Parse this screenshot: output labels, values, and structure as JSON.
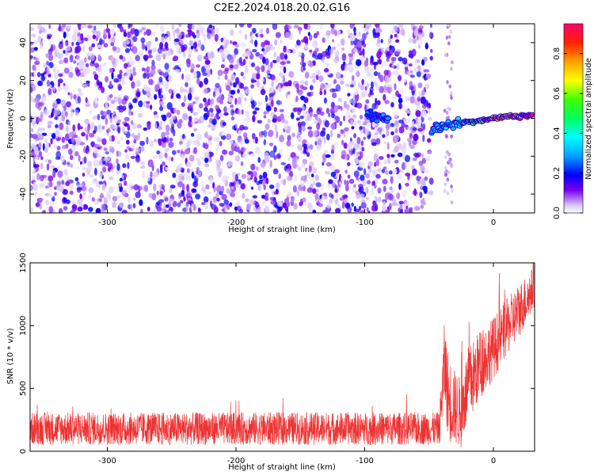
{
  "title": "C2E2.2024.018.20.02.G16",
  "chart_data": [
    {
      "type": "heatmap",
      "xlabel": "Height of straight line (km)",
      "ylabel": "Frequency (Hz)",
      "xlim": [
        -360,
        32
      ],
      "ylim": [
        -50,
        50
      ],
      "x_ticks": [
        -300,
        -200,
        -100,
        0
      ],
      "y_ticks": [
        -40,
        -20,
        0,
        20,
        40
      ],
      "x_tick_labels": [
        "-300",
        "-200",
        "-100",
        "0"
      ],
      "y_tick_labels": [
        "-40",
        "-20",
        "0",
        "20",
        "40"
      ],
      "colorbar": {
        "label": "Normalized spectral amplitude",
        "range": [
          0,
          0.95
        ],
        "ticks": [
          0,
          0.2,
          0.4,
          0.6,
          0.8
        ],
        "tick_labels": [
          "0.0",
          "0.2",
          "0.4",
          "0.6",
          "0.8"
        ]
      },
      "noise_region": {
        "x_range": [
          -360,
          -48
        ],
        "freq_range": [
          -50,
          50
        ],
        "amplitude": [
          0.02,
          0.2
        ]
      },
      "signal_ridge": [
        {
          "x": -98,
          "f": 2,
          "a": 0.3
        },
        {
          "x": -82,
          "f": 0,
          "a": 0.3
        },
        {
          "x": -48,
          "f": -6,
          "a": 0.35
        },
        {
          "x": -40,
          "f": -4,
          "a": 0.35
        },
        {
          "x": -30,
          "f": -3,
          "a": 0.4
        },
        {
          "x": -20,
          "f": -2,
          "a": 0.55
        },
        {
          "x": -10,
          "f": -1,
          "a": 0.7
        },
        {
          "x": 0,
          "f": 0,
          "a": 0.85
        },
        {
          "x": 10,
          "f": 1,
          "a": 0.9
        },
        {
          "x": 20,
          "f": 1,
          "a": 0.92
        },
        {
          "x": 30,
          "f": 2,
          "a": 0.95
        }
      ]
    },
    {
      "type": "line",
      "xlabel": "Height of straight line (km)",
      "ylabel": "SNR (10 * v/v)",
      "xlim": [
        -360,
        32
      ],
      "ylim": [
        0,
        1500
      ],
      "x_ticks": [
        -300,
        -200,
        -100,
        0
      ],
      "y_ticks": [
        0,
        500,
        1000,
        1500
      ],
      "x_tick_labels": [
        "-300",
        "-200",
        "-100",
        "0"
      ],
      "y_tick_labels": [
        "0",
        "500",
        "1000",
        "1500"
      ],
      "color": "#ee3333",
      "series": [
        {
          "x": [
            -360,
            -300,
            -250,
            -200,
            -150,
            -100,
            -60,
            -42,
            -38,
            -35,
            -30,
            -25,
            -20,
            -15,
            -10,
            -5,
            0,
            5,
            10,
            15,
            20,
            25,
            30,
            32
          ],
          "mean": [
            180,
            180,
            180,
            180,
            180,
            180,
            180,
            180,
            700,
            420,
            350,
            300,
            520,
            600,
            700,
            760,
            820,
            900,
            980,
            1050,
            1120,
            1200,
            1280,
            1300
          ],
          "spread": [
            130,
            130,
            130,
            130,
            130,
            130,
            130,
            130,
            350,
            350,
            300,
            280,
            300,
            300,
            280,
            260,
            250,
            240,
            230,
            220,
            220,
            200,
            180,
            180
          ]
        }
      ]
    }
  ]
}
